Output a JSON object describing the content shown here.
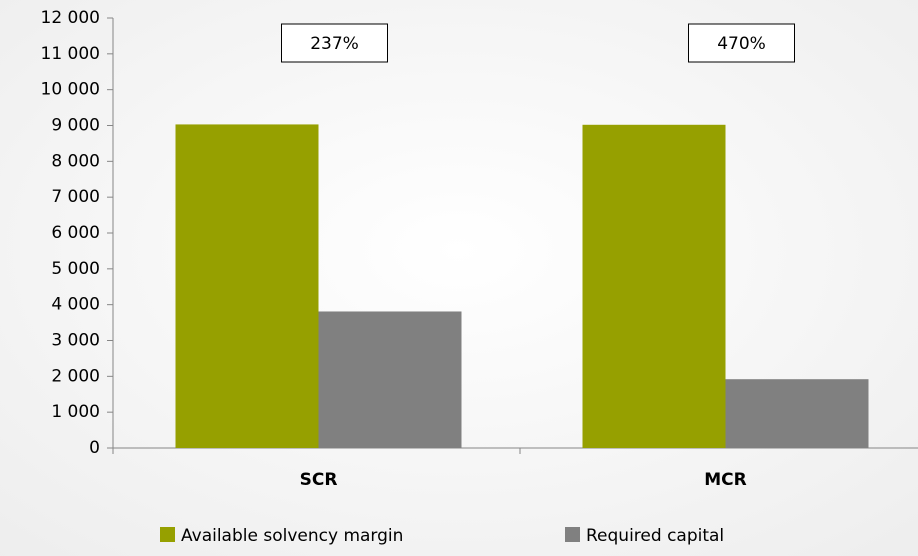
{
  "chart_data": {
    "type": "bar",
    "categories": [
      "SCR",
      "MCR"
    ],
    "series": [
      {
        "name": "Available solvency margin",
        "color": "#96a000",
        "values": [
          9030,
          9020
        ]
      },
      {
        "name": "Required capital",
        "color": "#808080",
        "values": [
          3810,
          1920
        ]
      }
    ],
    "annotations": [
      "237%",
      "470%"
    ],
    "ylim": [
      0,
      12000
    ],
    "yticks": [
      0,
      {
        "value": 1000,
        "label": "1 000"
      },
      {
        "value": 2000,
        "label": "2 000"
      },
      {
        "value": 3000,
        "label": "3 000"
      },
      {
        "value": 4000,
        "label": "4 000"
      },
      {
        "value": 5000,
        "label": "5 000"
      },
      {
        "value": 6000,
        "label": "6 000"
      },
      {
        "value": 7000,
        "label": "7 000"
      },
      {
        "value": 8000,
        "label": "8 000"
      },
      {
        "value": 9000,
        "label": "9 000"
      },
      {
        "value": 10000,
        "label": "10 000"
      },
      {
        "value": 11000,
        "label": "11 000"
      },
      {
        "value": 12000,
        "label": "12 000"
      }
    ],
    "legend": "bottom"
  }
}
